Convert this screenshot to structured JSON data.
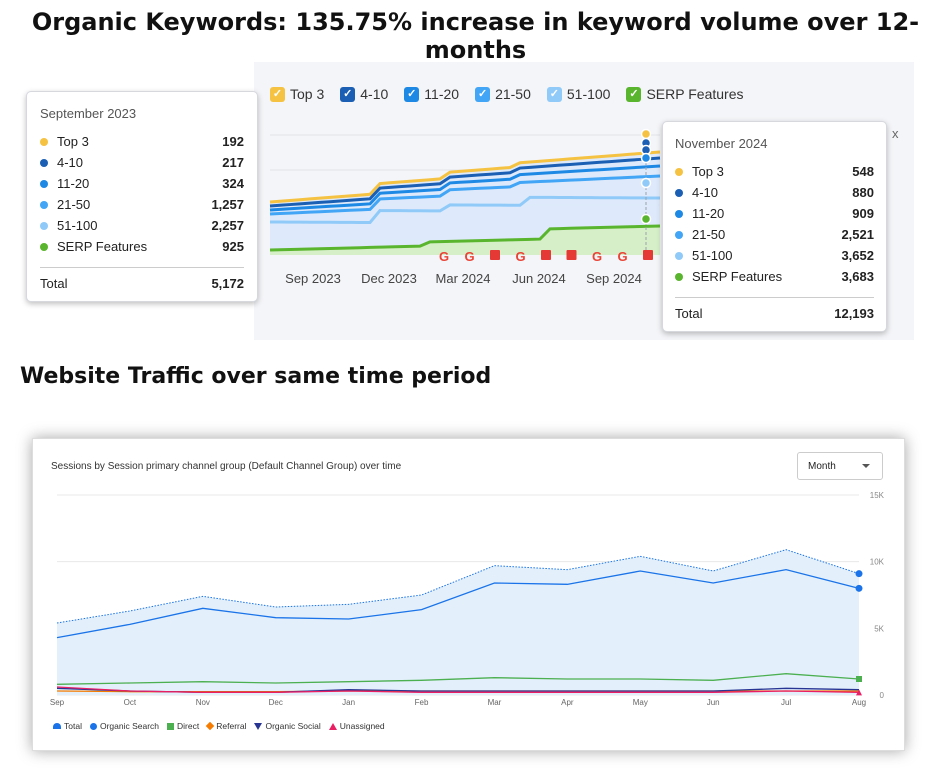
{
  "headline": "Organic Keywords: 135.75% increase in keyword volume over  12-months",
  "subheadline": "Website Traffic over same time period",
  "chart_data": [
    {
      "type": "area",
      "x_ticks": [
        "Sep 2023",
        "Dec 2023",
        "Mar 2024",
        "Jun 2024",
        "Sep 2024"
      ],
      "legend": [
        {
          "name": "Top 3",
          "color": "#f5c242"
        },
        {
          "name": "4-10",
          "color": "#1a5fb4"
        },
        {
          "name": "11-20",
          "color": "#1e88e5"
        },
        {
          "name": "21-50",
          "color": "#42a5f5"
        },
        {
          "name": "51-100",
          "color": "#90caf9"
        },
        {
          "name": "SERP Features",
          "color": "#5ab52e"
        }
      ],
      "tooltip_left": {
        "date": "September 2023",
        "rows": [
          {
            "label": "Top 3",
            "value": "192",
            "color": "#f5c242"
          },
          {
            "label": "4-10",
            "value": "217",
            "color": "#1a5fb4"
          },
          {
            "label": "11-20",
            "value": "324",
            "color": "#1e88e5"
          },
          {
            "label": "21-50",
            "value": "1,257",
            "color": "#42a5f5"
          },
          {
            "label": "51-100",
            "value": "2,257",
            "color": "#90caf9"
          },
          {
            "label": "SERP Features",
            "value": "925",
            "color": "#5ab52e"
          }
        ],
        "total_label": "Total",
        "total_value": "5,172"
      },
      "tooltip_right": {
        "date": "November 2024",
        "rows": [
          {
            "label": "Top 3",
            "value": "548",
            "color": "#f5c242"
          },
          {
            "label": "4-10",
            "value": "880",
            "color": "#1a5fb4"
          },
          {
            "label": "11-20",
            "value": "909",
            "color": "#1e88e5"
          },
          {
            "label": "21-50",
            "value": "2,521",
            "color": "#42a5f5"
          },
          {
            "label": "51-100",
            "value": "3,652",
            "color": "#90caf9"
          },
          {
            "label": "SERP Features",
            "value": "3,683",
            "color": "#5ab52e"
          }
        ],
        "total_label": "Total",
        "total_value": "12,193"
      },
      "markers": [
        "google",
        "google",
        "flag",
        "google",
        "flag",
        "flag",
        "google",
        "google",
        "flag",
        "google"
      ]
    },
    {
      "type": "line",
      "title": "Sessions by Session primary channel group (Default Channel Group) over time",
      "period_select": "Month",
      "x": [
        "Sep",
        "Oct",
        "Nov",
        "Dec",
        "Jan",
        "Feb",
        "Mar",
        "Apr",
        "May",
        "Jun",
        "Jul",
        "Aug"
      ],
      "y_ticks": [
        "15K",
        "10K",
        "5K",
        "0"
      ],
      "ylim": [
        0,
        15000
      ],
      "series": [
        {
          "name": "Total",
          "color": "#1a73e8",
          "values": [
            5400,
            6300,
            7400,
            6600,
            6800,
            7500,
            9700,
            9400,
            10400,
            9300,
            10900,
            9100
          ]
        },
        {
          "name": "Organic Search",
          "color": "#1a73e8",
          "values": [
            4300,
            5300,
            6500,
            5800,
            5700,
            6400,
            8400,
            8300,
            9300,
            8400,
            9400,
            8000
          ]
        },
        {
          "name": "Direct",
          "color": "#4caf50",
          "values": [
            800,
            900,
            1000,
            900,
            1000,
            1100,
            1300,
            1200,
            1200,
            1100,
            1600,
            1200
          ]
        },
        {
          "name": "Referral",
          "color": "#f57c00",
          "values": [
            300,
            250,
            250,
            250,
            300,
            300,
            300,
            300,
            300,
            300,
            300,
            300
          ]
        },
        {
          "name": "Organic Social",
          "color": "#283593",
          "values": [
            500,
            300,
            200,
            200,
            400,
            300,
            300,
            300,
            300,
            300,
            500,
            400
          ]
        },
        {
          "name": "Unassigned",
          "color": "#e91e63",
          "values": [
            600,
            300,
            200,
            200,
            300,
            200,
            200,
            200,
            200,
            200,
            300,
            200
          ]
        }
      ],
      "legend": [
        {
          "name": "Total",
          "color": "#1a73e8",
          "marker": "pin"
        },
        {
          "name": "Organic Search",
          "color": "#1a73e8",
          "marker": "circle"
        },
        {
          "name": "Direct",
          "color": "#4caf50",
          "marker": "square"
        },
        {
          "name": "Referral",
          "color": "#f57c00",
          "marker": "diamond"
        },
        {
          "name": "Organic Social",
          "color": "#283593",
          "marker": "triangle-down"
        },
        {
          "name": "Unassigned",
          "color": "#e91e63",
          "marker": "triangle-up"
        }
      ]
    }
  ]
}
